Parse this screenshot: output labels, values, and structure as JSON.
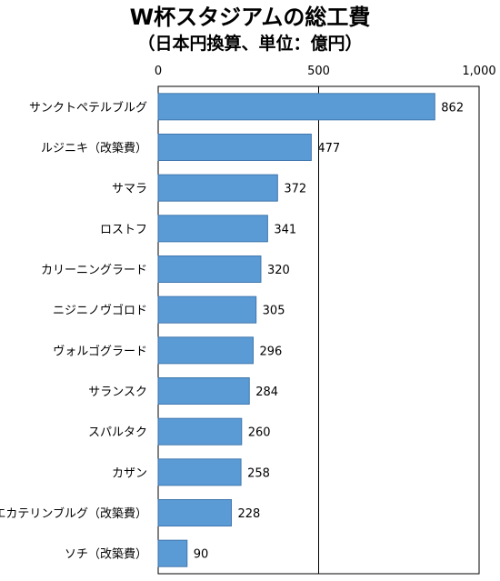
{
  "chart_data": {
    "type": "bar",
    "orientation": "horizontal",
    "title": "W杯スタジアムの総工費",
    "subtitle": "（日本円換算、単位：億円）",
    "categories": [
      "サンクトペテルブルグ",
      "ルジニキ（改築費）",
      "サマラ",
      "ロストフ",
      "カリーニングラード",
      "ニジニノヴゴロド",
      "ヴォルゴグラード",
      "サランスク",
      "スパルタク",
      "カザン",
      "エカテリンブルグ（改築費）",
      "ソチ（改築費）"
    ],
    "values": [
      862,
      477,
      372,
      341,
      320,
      305,
      296,
      284,
      260,
      258,
      228,
      90
    ],
    "xlim": [
      0,
      1000
    ],
    "xticks": [
      0,
      500,
      1000
    ],
    "xtick_labels": [
      "0",
      "500",
      "1,000"
    ],
    "axis_position": "top",
    "grid": "vertical line at 500",
    "bar_color": "#5b9bd5",
    "bar_edge_color": "#3f76ad"
  }
}
